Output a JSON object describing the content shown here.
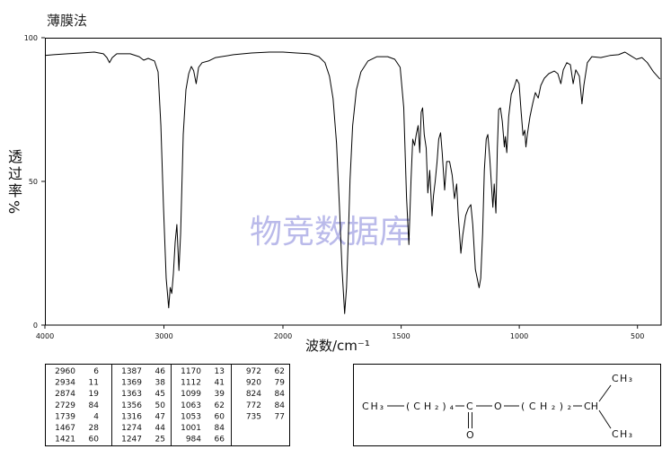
{
  "chart_data": {
    "type": "line",
    "title": "薄膜法",
    "xlabel": "波数/cm⁻¹",
    "ylabel": "透过率%",
    "watermark": "物竞数据库",
    "xlim": [
      4000,
      400
    ],
    "x_scale_break": 2000,
    "ylim": [
      0,
      100
    ],
    "x_ticks": [
      4000,
      3000,
      2000,
      1500,
      1000,
      500
    ],
    "y_ticks": [
      100,
      50,
      0
    ],
    "grid": false,
    "series": [
      {
        "x": [
          4000,
          3925,
          3811,
          3698,
          3585,
          3509,
          3479,
          3457,
          3434,
          3396,
          3283,
          3208,
          3170,
          3132,
          3079,
          3049,
          3026,
          3004,
          2981,
          2960,
          2947,
          2934,
          2921,
          2906,
          2891,
          2874,
          2860,
          2838,
          2815,
          2792,
          2770,
          2750,
          2729,
          2709,
          2679,
          2626,
          2566,
          2415,
          2264,
          2113,
          2000,
          1943,
          1886,
          1848,
          1822,
          1803,
          1788,
          1773,
          1761,
          1750,
          1739,
          1731,
          1723,
          1716,
          1705,
          1689,
          1670,
          1640,
          1602,
          1557,
          1527,
          1504,
          1489,
          1477,
          1467,
          1458,
          1451,
          1443,
          1436,
          1428,
          1421,
          1415,
          1409,
          1402,
          1394,
          1387,
          1379,
          1369,
          1363,
          1356,
          1348,
          1341,
          1333,
          1326,
          1316,
          1307,
          1295,
          1284,
          1274,
          1265,
          1258,
          1247,
          1239,
          1227,
          1216,
          1205,
          1197,
          1186,
          1170,
          1163,
          1155,
          1148,
          1140,
          1133,
          1125,
          1112,
          1106,
          1099,
          1093,
          1087,
          1080,
          1072,
          1063,
          1059,
          1053,
          1045,
          1034,
          1023,
          1011,
          1001,
          992,
          984,
          977,
          972,
          966,
          955,
          943,
          932,
          920,
          909,
          894,
          875,
          852,
          837,
          824,
          814,
          799,
          784,
          772,
          761,
          746,
          735,
          727,
          712,
          693,
          655,
          617,
          580,
          553,
          530,
          504,
          481,
          458,
          432,
          405
        ],
        "y": [
          93.8,
          94.1,
          94.4,
          94.7,
          95.0,
          94.4,
          93.1,
          91.3,
          93.1,
          94.4,
          94.4,
          93.4,
          92.2,
          92.8,
          91.9,
          88.1,
          69.4,
          41.3,
          16.3,
          6,
          13.1,
          11,
          17.8,
          28.8,
          35.0,
          19,
          31.9,
          66.3,
          81.9,
          87.5,
          90.0,
          88.5,
          84,
          89.7,
          91.3,
          91.9,
          93.1,
          94.1,
          94.7,
          95.0,
          95.0,
          94.7,
          94.4,
          93.4,
          91.3,
          86.6,
          78.8,
          63.1,
          41.3,
          19.4,
          4,
          13.1,
          31.9,
          50.6,
          69.4,
          81.9,
          88.1,
          91.9,
          93.4,
          93.4,
          92.5,
          89.7,
          75.6,
          44.4,
          28,
          50.6,
          64.7,
          62.5,
          66.3,
          69.4,
          60,
          74.1,
          75.6,
          66.3,
          61.6,
          46,
          53.8,
          38,
          45,
          50,
          56.9,
          64.7,
          66.9,
          60.0,
          47,
          56.9,
          56.9,
          52.2,
          44,
          49.1,
          38.1,
          25,
          31.3,
          38.1,
          40.6,
          41.9,
          35.0,
          19.4,
          13,
          16.3,
          31.9,
          53.8,
          64.7,
          66.3,
          58.4,
          41,
          49.1,
          39,
          61.6,
          75.0,
          75.6,
          70.9,
          62,
          65.6,
          60,
          72.5,
          80.3,
          82.5,
          85.5,
          84,
          74.1,
          66,
          67.8,
          62,
          66.3,
          72.5,
          77.2,
          80.9,
          79,
          83.4,
          85.9,
          87.5,
          88.4,
          87.5,
          84,
          88.8,
          91.3,
          90.6,
          84,
          88.8,
          86.6,
          77,
          83.4,
          91.3,
          93.4,
          93.1,
          93.8,
          94.1,
          95.0,
          93.8,
          92.5,
          93.1,
          91.3,
          88.1,
          85.6
        ]
      }
    ]
  },
  "peak_table": {
    "columns": [
      [
        {
          "wn": "2960",
          "t": "6"
        },
        {
          "wn": "2934",
          "t": "11"
        },
        {
          "wn": "2874",
          "t": "19"
        },
        {
          "wn": "2729",
          "t": "84"
        },
        {
          "wn": "1739",
          "t": "4"
        },
        {
          "wn": "1467",
          "t": "28"
        },
        {
          "wn": "1421",
          "t": "60"
        }
      ],
      [
        {
          "wn": "1387",
          "t": "46"
        },
        {
          "wn": "1369",
          "t": "38"
        },
        {
          "wn": "1363",
          "t": "45"
        },
        {
          "wn": "1356",
          "t": "50"
        },
        {
          "wn": "1316",
          "t": "47"
        },
        {
          "wn": "1274",
          "t": "44"
        },
        {
          "wn": "1247",
          "t": "25"
        }
      ],
      [
        {
          "wn": "1170",
          "t": "13"
        },
        {
          "wn": "1112",
          "t": "41"
        },
        {
          "wn": "1099",
          "t": "39"
        },
        {
          "wn": "1063",
          "t": "62"
        },
        {
          "wn": "1053",
          "t": "60"
        },
        {
          "wn": "1001",
          "t": "84"
        },
        {
          "wn": "984",
          "t": "66"
        }
      ],
      [
        {
          "wn": "972",
          "t": "62"
        },
        {
          "wn": "920",
          "t": "79"
        },
        {
          "wn": "824",
          "t": "84"
        },
        {
          "wn": "772",
          "t": "84"
        },
        {
          "wn": "735",
          "t": "77"
        }
      ]
    ]
  },
  "structure": {
    "left_methyl": "CH₃",
    "chain_1": "(CH₂)₄",
    "carbonyl_carbon": "C",
    "carbonyl_oxygen": "O",
    "ester_oxygen": "O",
    "chain_2": "(CH₂)₂",
    "methine": "CH",
    "methyl_top": "CH₃",
    "methyl_bottom": "CH₃"
  }
}
